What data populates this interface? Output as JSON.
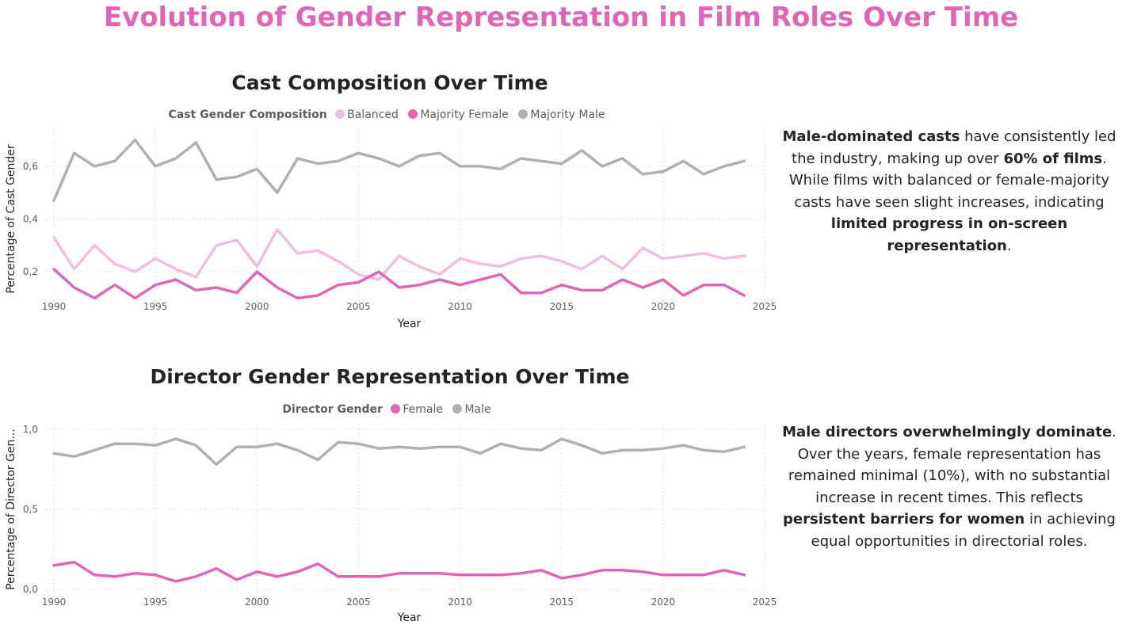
{
  "page": {
    "title": "Evolution of Gender Representation in Film Roles Over Time"
  },
  "colors": {
    "title": "#e066b4",
    "balanced": "#f2bde0",
    "majority_female": "#e066b4",
    "majority_male": "#b0b0b0",
    "female": "#e066b4",
    "male": "#b0b0b0"
  },
  "notes": {
    "cast": {
      "p1": "Male-dominated casts",
      "p2": " have consistently led the industry, making up over ",
      "p3": "60% of films",
      "p4": ". While films with balanced or female-majority casts have seen slight increases, indicating ",
      "p5": "limited progress in on-screen representation",
      "p6": "."
    },
    "director": {
      "p1": "Male directors overwhelmingly dominate",
      "p2": ". Over the years, female representation has remained minimal (10%), with no substantial increase in recent times. This reflects ",
      "p3": "persistent barriers for women",
      "p4": " in achieving equal opportunities in directorial roles."
    }
  },
  "chart_data": [
    {
      "id": "cast",
      "type": "line",
      "title": "Cast Composition Over Time",
      "legend_title": "Cast Gender Composition",
      "legend_position": "top-center",
      "xlabel": "Year",
      "ylabel": "Percentage of Cast Gender",
      "xlim": [
        1990,
        2025
      ],
      "ylim": [
        0.08,
        0.72
      ],
      "x_ticks": [
        1990,
        1995,
        2000,
        2005,
        2010,
        2015,
        2020,
        2025
      ],
      "x_tick_labels": [
        "1990",
        "1995",
        "2000",
        "2005",
        "2010",
        "2015",
        "2020",
        "2025"
      ],
      "y_ticks": [
        0.2,
        0.4,
        0.6
      ],
      "y_tick_labels": [
        "0,2",
        "0,4",
        "0,6"
      ],
      "grid": true,
      "x": [
        1990,
        1991,
        1992,
        1993,
        1994,
        1995,
        1996,
        1997,
        1998,
        1999,
        2000,
        2001,
        2002,
        2003,
        2004,
        2005,
        2006,
        2007,
        2008,
        2009,
        2010,
        2011,
        2012,
        2013,
        2014,
        2015,
        2016,
        2017,
        2018,
        2019,
        2020,
        2021,
        2022,
        2023,
        2024
      ],
      "series": [
        {
          "name": "Balanced",
          "color_key": "balanced",
          "values": [
            0.33,
            0.21,
            0.3,
            0.23,
            0.2,
            0.25,
            0.21,
            0.18,
            0.3,
            0.32,
            0.22,
            0.36,
            0.27,
            0.28,
            0.24,
            0.19,
            0.17,
            0.26,
            0.22,
            0.19,
            0.25,
            0.23,
            0.22,
            0.25,
            0.26,
            0.24,
            0.21,
            0.26,
            0.21,
            0.29,
            0.25,
            0.26,
            0.27,
            0.25,
            0.26
          ]
        },
        {
          "name": "Majority Female",
          "color_key": "majority_female",
          "values": [
            0.21,
            0.14,
            0.1,
            0.15,
            0.1,
            0.15,
            0.17,
            0.13,
            0.14,
            0.12,
            0.2,
            0.14,
            0.1,
            0.11,
            0.15,
            0.16,
            0.2,
            0.14,
            0.15,
            0.17,
            0.15,
            0.17,
            0.19,
            0.12,
            0.12,
            0.15,
            0.13,
            0.13,
            0.17,
            0.14,
            0.17,
            0.11,
            0.15,
            0.15,
            0.11
          ]
        },
        {
          "name": "Majority Male",
          "color_key": "majority_male",
          "values": [
            0.47,
            0.65,
            0.6,
            0.62,
            0.7,
            0.6,
            0.63,
            0.69,
            0.55,
            0.56,
            0.59,
            0.5,
            0.63,
            0.61,
            0.62,
            0.65,
            0.63,
            0.6,
            0.64,
            0.65,
            0.6,
            0.6,
            0.59,
            0.63,
            0.62,
            0.61,
            0.66,
            0.6,
            0.63,
            0.57,
            0.58,
            0.62,
            0.57,
            0.6,
            0.62
          ]
        }
      ]
    },
    {
      "id": "director",
      "type": "line",
      "title": "Director Gender Representation Over Time",
      "legend_title": "Director Gender",
      "legend_position": "top-center",
      "xlabel": "Year",
      "ylabel": "Percentage of Director Gen...",
      "xlim": [
        1990,
        2025
      ],
      "ylim": [
        0,
        1.0
      ],
      "x_ticks": [
        1990,
        1995,
        2000,
        2005,
        2010,
        2015,
        2020,
        2025
      ],
      "x_tick_labels": [
        "1990",
        "1995",
        "2000",
        "2005",
        "2010",
        "2015",
        "2020",
        "2025"
      ],
      "y_ticks": [
        0,
        0.5,
        1.0
      ],
      "y_tick_labels": [
        "0,0",
        "0,5",
        "1,0"
      ],
      "grid": true,
      "x": [
        1990,
        1991,
        1992,
        1993,
        1994,
        1995,
        1996,
        1997,
        1998,
        1999,
        2000,
        2001,
        2002,
        2003,
        2004,
        2005,
        2006,
        2007,
        2008,
        2009,
        2010,
        2011,
        2012,
        2013,
        2014,
        2015,
        2016,
        2017,
        2018,
        2019,
        2020,
        2021,
        2022,
        2023,
        2024
      ],
      "series": [
        {
          "name": "Female",
          "color_key": "female",
          "values": [
            0.15,
            0.17,
            0.09,
            0.08,
            0.1,
            0.09,
            0.05,
            0.08,
            0.13,
            0.06,
            0.11,
            0.08,
            0.11,
            0.16,
            0.08,
            0.08,
            0.08,
            0.1,
            0.1,
            0.1,
            0.09,
            0.09,
            0.09,
            0.1,
            0.12,
            0.07,
            0.09,
            0.12,
            0.12,
            0.11,
            0.09,
            0.09,
            0.09,
            0.12,
            0.09
          ]
        },
        {
          "name": "Male",
          "color_key": "male",
          "values": [
            0.85,
            0.83,
            0.87,
            0.91,
            0.91,
            0.9,
            0.94,
            0.9,
            0.78,
            0.89,
            0.89,
            0.91,
            0.87,
            0.81,
            0.92,
            0.91,
            0.88,
            0.89,
            0.88,
            0.89,
            0.89,
            0.85,
            0.91,
            0.88,
            0.87,
            0.94,
            0.9,
            0.85,
            0.87,
            0.87,
            0.88,
            0.9,
            0.87,
            0.86,
            0.89
          ]
        }
      ]
    }
  ]
}
